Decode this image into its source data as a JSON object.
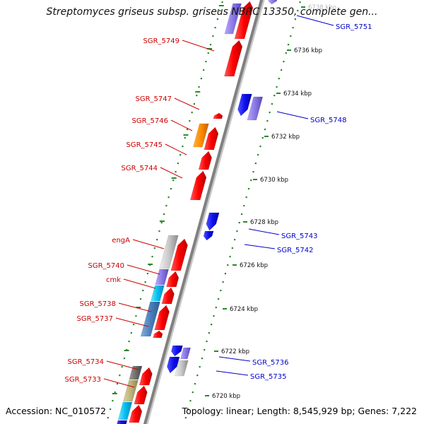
{
  "title": "Streptomyces griseus subsp. griseus NBRC 13350, complete gen...",
  "accession_text": "Accession: NC_010572",
  "topology_text": "Topology: linear; Length: 8,545,929 bp; Genes: 7,222",
  "colors": {
    "forward_label": "#cc0000",
    "reverse_label": "#0000cc",
    "backbone": "#808080",
    "ruler_ticks": "#2a8a2a"
  },
  "ruler_labels": [
    "6738 kbp",
    "6736 kbp",
    "6734 kbp",
    "6732 kbp",
    "6730 kbp",
    "6728 kbp",
    "6726 kbp",
    "6724 kbp",
    "6722 kbp",
    "6720 kbp"
  ],
  "forward_labels": [
    "SGR_5749",
    "SGR_5747",
    "SGR_5746",
    "SGR_5745",
    "SGR_5744",
    "engA",
    "SGR_5740",
    "cmk",
    "SGR_5738",
    "SGR_5737",
    "SGR_5734",
    "SGR_5733"
  ],
  "reverse_labels": [
    "SGR_5751",
    "SGR_5748",
    "SGR_5743",
    "SGR_5742",
    "SGR_5736",
    "SGR_5735"
  ]
}
